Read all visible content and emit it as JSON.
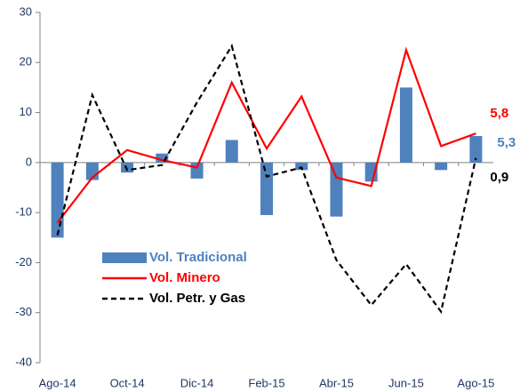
{
  "chart_data": {
    "type": "bar_line",
    "categories": [
      "Ago-14",
      null,
      "Oct-14",
      null,
      "Dic-14",
      null,
      "Feb-15",
      null,
      "Abr-15",
      null,
      "Jun-15",
      null,
      "Ago-15"
    ],
    "series": [
      {
        "name": "Vol. Tradicional",
        "type": "bar",
        "color": "#4f81bd",
        "values": [
          -15,
          -3.5,
          -2,
          1.8,
          -3.2,
          4.5,
          -10.5,
          -1.5,
          -10.8,
          -3.8,
          15,
          -1.5,
          5.3
        ],
        "value_labels": [
          null,
          null,
          null,
          null,
          null,
          null,
          null,
          null,
          null,
          null,
          null,
          null,
          "5,3"
        ]
      },
      {
        "name": "Vol. Minero",
        "type": "line",
        "color": "#ff0000",
        "dashed": false,
        "values": [
          -12,
          -3,
          2.5,
          0.5,
          -1,
          16,
          2.8,
          13.2,
          -3,
          -4.7,
          22.5,
          3.3,
          5.8
        ],
        "value_labels": [
          null,
          null,
          null,
          null,
          null,
          null,
          null,
          null,
          null,
          null,
          null,
          null,
          "5,8"
        ]
      },
      {
        "name": "Vol. Petr. y Gas",
        "type": "line",
        "color": "#000000",
        "dashed": true,
        "values": [
          -14.5,
          13.5,
          -1.5,
          -0.5,
          12,
          23.3,
          -2.8,
          -1,
          -19.5,
          -28.5,
          -20.3,
          -29.8,
          0.9
        ],
        "value_labels": [
          null,
          null,
          null,
          null,
          null,
          null,
          null,
          null,
          null,
          null,
          null,
          null,
          "0,9"
        ]
      }
    ],
    "ylim": [
      -40,
      30
    ],
    "yticks": [
      -40,
      -30,
      -20,
      -10,
      0,
      10,
      20,
      30
    ],
    "grid": false,
    "legend": "lower-left"
  }
}
